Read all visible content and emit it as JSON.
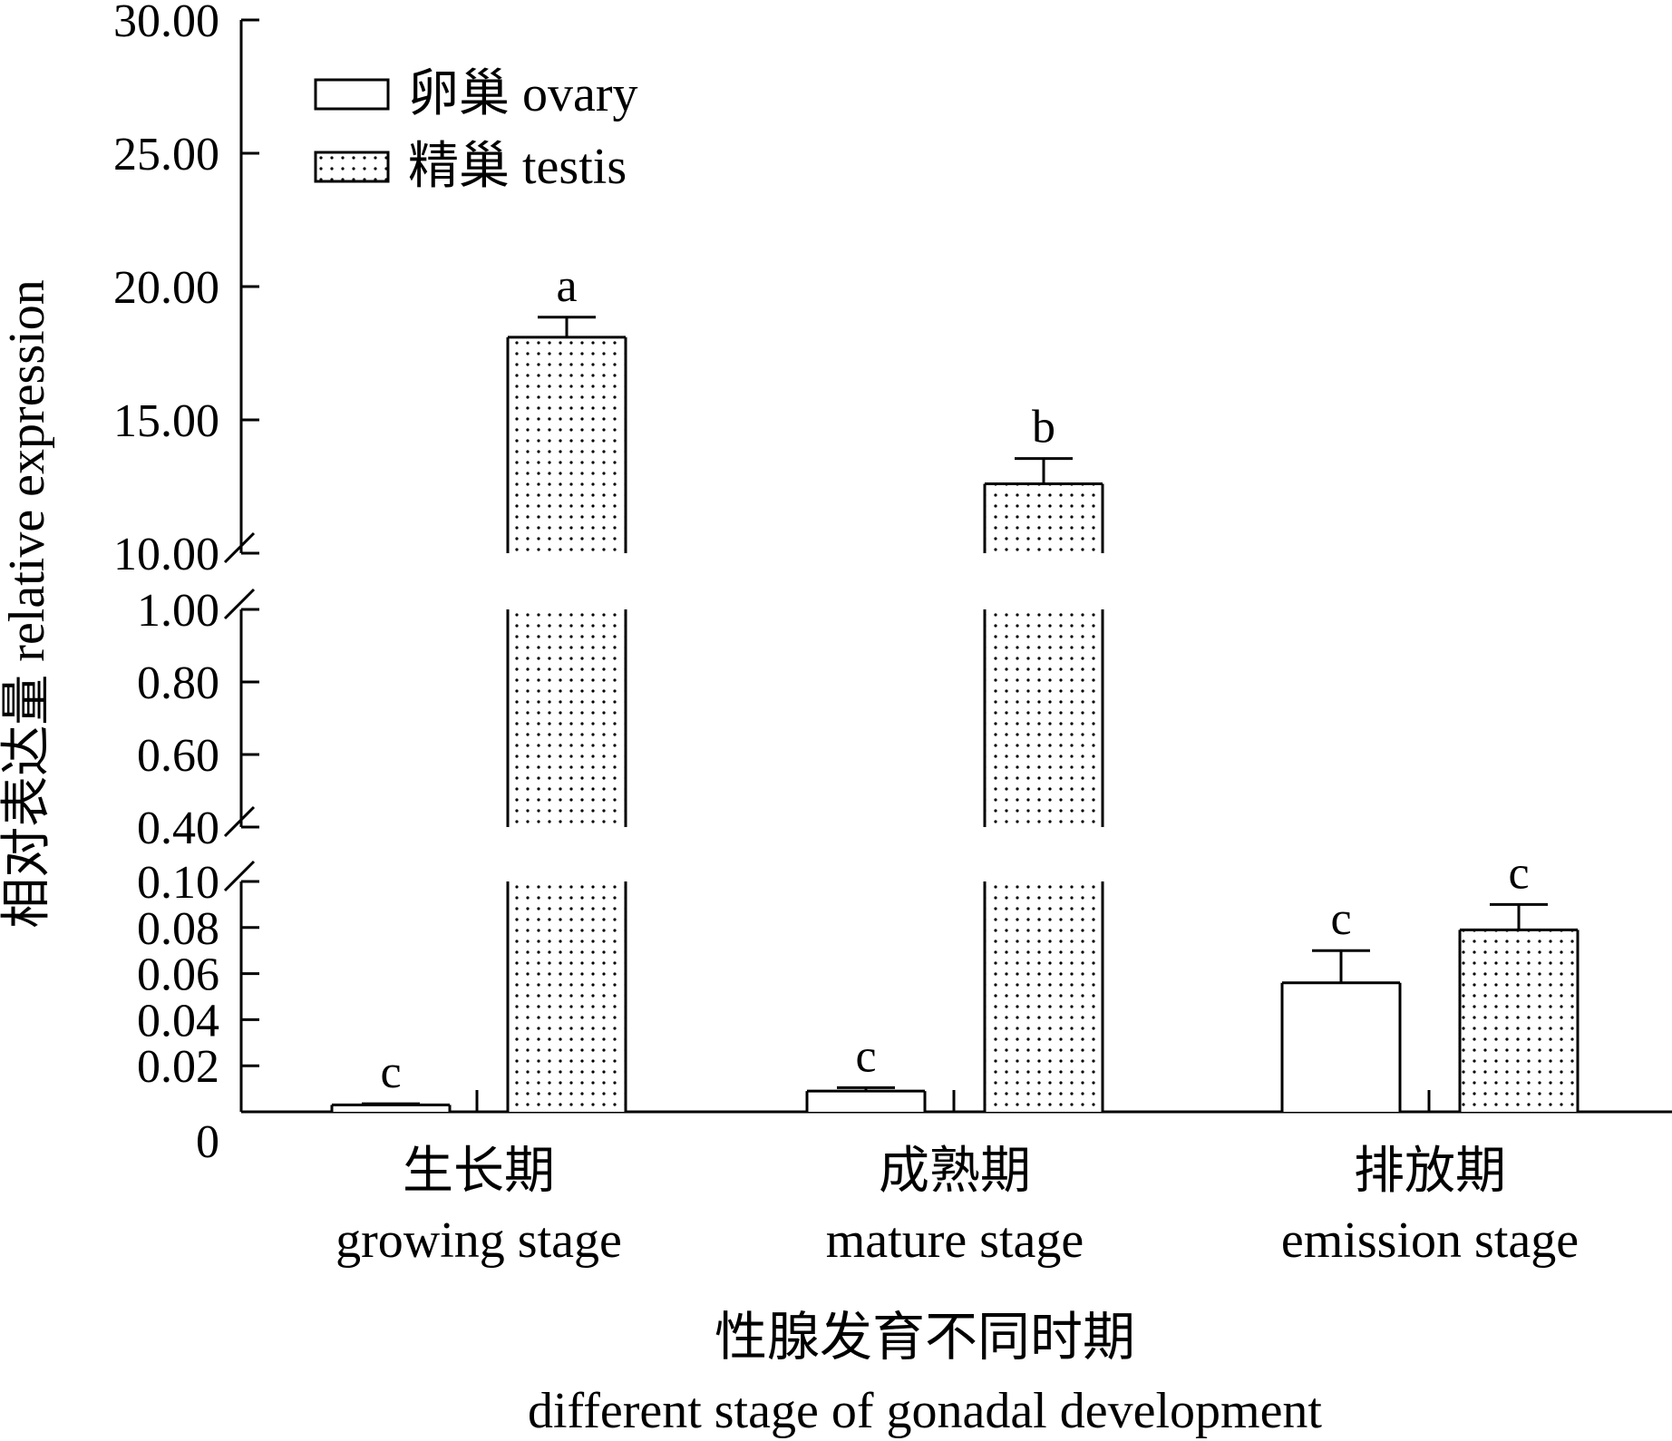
{
  "chart_data": {
    "type": "bar",
    "xlabel_cn": "性腺发育不同时期",
    "xlabel_en": "different stage of gonadal development",
    "ylabel": "相对表达量 relative expression",
    "categories": [
      {
        "cn": "生长期",
        "en": "growing stage"
      },
      {
        "cn": "成熟期",
        "en": "mature stage"
      },
      {
        "cn": "排放期",
        "en": "emission stage"
      }
    ],
    "series": [
      {
        "name": "卵巢 ovary",
        "pattern": "none",
        "values": [
          0.003,
          0.009,
          0.056
        ],
        "errors": [
          0.0005,
          0.0015,
          0.014
        ],
        "labels": [
          "c",
          "c",
          "c"
        ]
      },
      {
        "name": "精巢 testis",
        "pattern": "dots",
        "values": [
          18.1,
          12.6,
          0.079
        ],
        "errors": [
          0.75,
          0.95,
          0.011
        ],
        "labels": [
          "a",
          "b",
          "c"
        ]
      }
    ],
    "broken_axis_segments": [
      {
        "range": [
          0,
          0.1
        ],
        "ticks": [
          "0",
          "0.02",
          "0.04",
          "0.06",
          "0.08",
          "0.10"
        ]
      },
      {
        "range": [
          0.4,
          1.0
        ],
        "ticks": [
          "0.40",
          "0.60",
          "0.80",
          "1.00"
        ]
      },
      {
        "range": [
          10,
          30
        ],
        "ticks": [
          "10.00",
          "15.00",
          "20.00",
          "25.00",
          "30.00"
        ]
      }
    ],
    "legend_position": "top-left",
    "grid": false
  }
}
